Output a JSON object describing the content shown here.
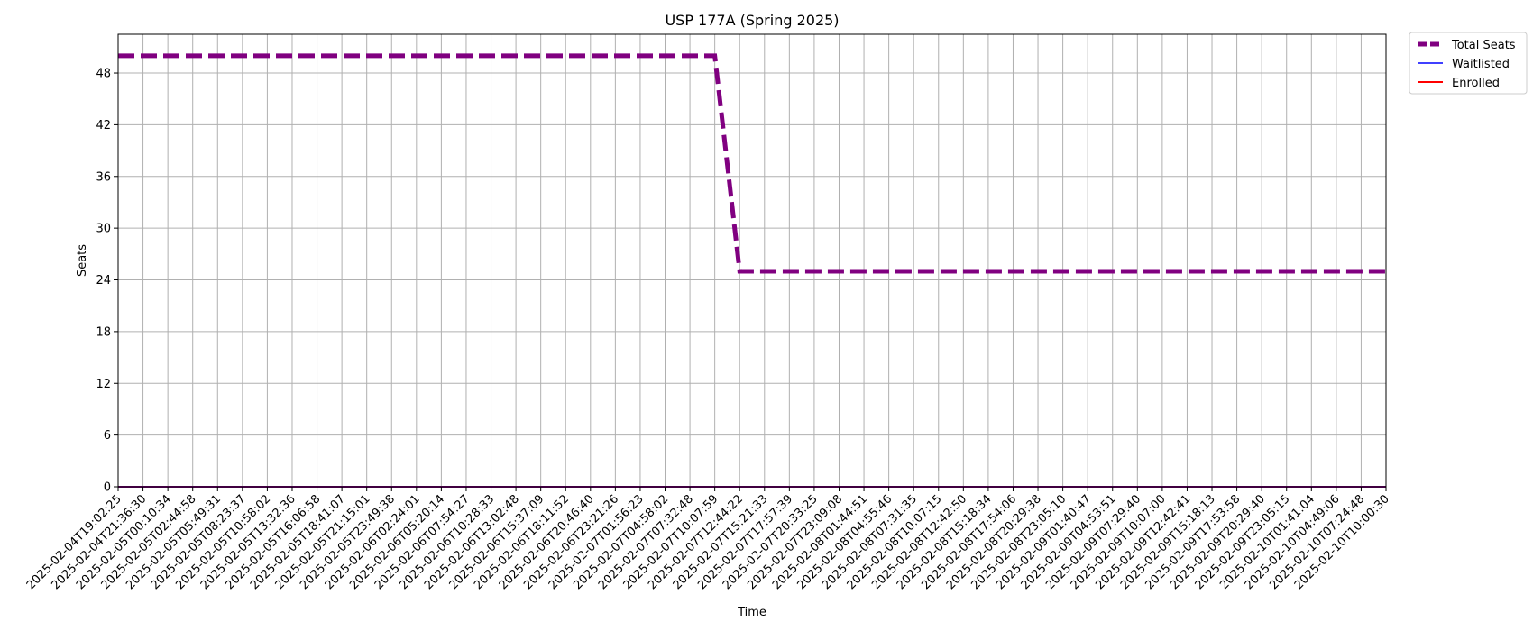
{
  "chart_data": {
    "type": "line",
    "title": "USP 177A (Spring 2025)",
    "xlabel": "Time",
    "ylabel": "Seats",
    "ylim": [
      0,
      52.5
    ],
    "yticks": [
      0,
      6,
      12,
      18,
      24,
      30,
      36,
      42,
      48
    ],
    "grid": true,
    "legend_position": "outside-top-right",
    "categories": [
      "2025-02-04T19:02:25",
      "2025-02-04T21:36:30",
      "2025-02-05T00:10:34",
      "2025-02-05T02:44:58",
      "2025-02-05T05:49:31",
      "2025-02-05T08:23:37",
      "2025-02-05T10:58:02",
      "2025-02-05T13:32:36",
      "2025-02-05T16:06:58",
      "2025-02-05T18:41:07",
      "2025-02-05T21:15:01",
      "2025-02-05T23:49:38",
      "2025-02-06T02:24:01",
      "2025-02-06T05:20:14",
      "2025-02-06T07:54:27",
      "2025-02-06T10:28:33",
      "2025-02-06T13:02:48",
      "2025-02-06T15:37:09",
      "2025-02-06T18:11:52",
      "2025-02-06T20:46:40",
      "2025-02-06T23:21:26",
      "2025-02-07T01:56:23",
      "2025-02-07T04:58:02",
      "2025-02-07T07:32:48",
      "2025-02-07T10:07:59",
      "2025-02-07T12:44:22",
      "2025-02-07T15:21:33",
      "2025-02-07T17:57:39",
      "2025-02-07T20:33:25",
      "2025-02-07T23:09:08",
      "2025-02-08T01:44:51",
      "2025-02-08T04:55:46",
      "2025-02-08T07:31:35",
      "2025-02-08T10:07:15",
      "2025-02-08T12:42:50",
      "2025-02-08T15:18:34",
      "2025-02-08T17:54:06",
      "2025-02-08T20:29:38",
      "2025-02-08T23:05:10",
      "2025-02-09T01:40:47",
      "2025-02-09T04:53:51",
      "2025-02-09T07:29:40",
      "2025-02-09T10:07:00",
      "2025-02-09T12:42:41",
      "2025-02-09T15:18:13",
      "2025-02-09T17:53:58",
      "2025-02-09T20:29:40",
      "2025-02-09T23:05:15",
      "2025-02-10T01:41:04",
      "2025-02-10T04:49:06",
      "2025-02-10T07:24:48",
      "2025-02-10T10:00:30"
    ],
    "series": [
      {
        "name": "Total Seats",
        "color": "#800080",
        "style": "dashed",
        "values": [
          50,
          50,
          50,
          50,
          50,
          50,
          50,
          50,
          50,
          50,
          50,
          50,
          50,
          50,
          50,
          50,
          50,
          50,
          50,
          50,
          50,
          50,
          50,
          50,
          50,
          25,
          25,
          25,
          25,
          25,
          25,
          25,
          25,
          25,
          25,
          25,
          25,
          25,
          25,
          25,
          25,
          25,
          25,
          25,
          25,
          25,
          25,
          25,
          25,
          25,
          25,
          25
        ]
      },
      {
        "name": "Waitlisted",
        "color": "#0000ff",
        "style": "solid",
        "values": [
          0,
          0,
          0,
          0,
          0,
          0,
          0,
          0,
          0,
          0,
          0,
          0,
          0,
          0,
          0,
          0,
          0,
          0,
          0,
          0,
          0,
          0,
          0,
          0,
          0,
          0,
          0,
          0,
          0,
          0,
          0,
          0,
          0,
          0,
          0,
          0,
          0,
          0,
          0,
          0,
          0,
          0,
          0,
          0,
          0,
          0,
          0,
          0,
          0,
          0,
          0,
          0
        ]
      },
      {
        "name": "Enrolled",
        "color": "#ff0000",
        "style": "solid",
        "values": [
          0,
          0,
          0,
          0,
          0,
          0,
          0,
          0,
          0,
          0,
          0,
          0,
          0,
          0,
          0,
          0,
          0,
          0,
          0,
          0,
          0,
          0,
          0,
          0,
          0,
          0,
          0,
          0,
          0,
          0,
          0,
          0,
          0,
          0,
          0,
          0,
          0,
          0,
          0,
          0,
          0,
          0,
          0,
          0,
          0,
          0,
          0,
          0,
          0,
          0,
          0,
          0
        ]
      }
    ]
  }
}
